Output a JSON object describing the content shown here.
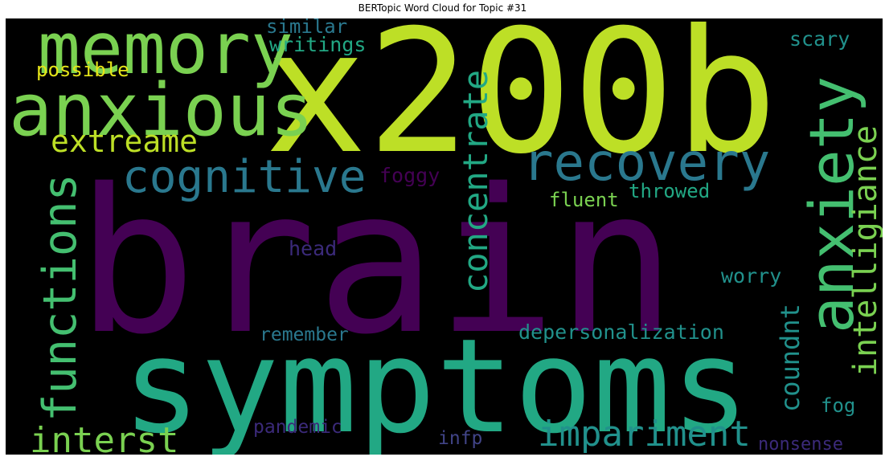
{
  "title": "BERTopic Word Cloud for Topic #31",
  "colors": {
    "background": "#000000",
    "purple": "#440154",
    "dark_purple_blue": "#3b2a7a",
    "indigo": "#414487",
    "blue": "#2a788e",
    "teal": "#21918c",
    "green_teal": "#22a884",
    "green": "#44bf70",
    "light_green": "#7ad151",
    "yellow_green": "#bddf26",
    "yellow": "#e4e419"
  },
  "words": {
    "brain": "brain",
    "x200b": "x200b",
    "symptoms": "symptoms",
    "memory": "memory",
    "anxious": "anxious",
    "anxiety": "anxiety",
    "cognitive": "cognitive",
    "recovery": "recovery",
    "functions": "functions",
    "extreame": "extreame",
    "interst": "interst",
    "impariment": "impariment",
    "concentrate": "concentrate",
    "intelligiance": "intelligiance",
    "coundnt": "coundnt",
    "depersonalization": "depersonalization",
    "similar": "similar",
    "writings": "writings",
    "possible": "possible",
    "scary": "scary",
    "foggy": "foggy",
    "throwed": "throwed",
    "fluent": "fluent",
    "head": "head",
    "worry": "worry",
    "remember": "remember",
    "fog": "fog",
    "pandemic": "pandemic",
    "infp": "infp",
    "nonsense": "nonsense"
  }
}
